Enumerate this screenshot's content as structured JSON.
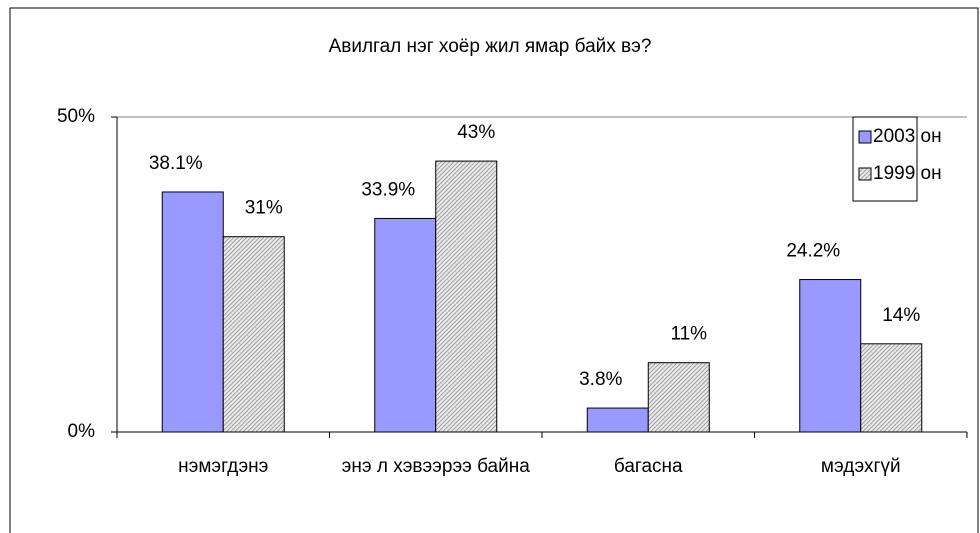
{
  "chart_data": {
    "type": "bar",
    "title": "Авилгал нэг хоёр жил ямар байх вэ?",
    "categories": [
      "нэмэгдэнэ",
      "энэ л хэвээрээ байна",
      "багасна",
      "мэдэхгүй"
    ],
    "series": [
      {
        "name": "2003 он",
        "color": "#9999ff",
        "values": [
          38.1,
          33.9,
          3.8,
          24.2
        ],
        "value_labels": [
          "38.1%",
          "33.9%",
          "3.8%",
          "24.2%"
        ]
      },
      {
        "name": "1999 он",
        "color": "#a0a0a0",
        "pattern": "hatch",
        "values": [
          31,
          43,
          11,
          14
        ],
        "value_labels": [
          "31%",
          "43%",
          "11%",
          "14%"
        ]
      }
    ],
    "ylim": [
      0,
      50
    ],
    "yticks": [
      {
        "value": 0,
        "label": "0%"
      },
      {
        "value": 50,
        "label": "50%"
      }
    ],
    "grid": false,
    "legend": "top-right"
  }
}
